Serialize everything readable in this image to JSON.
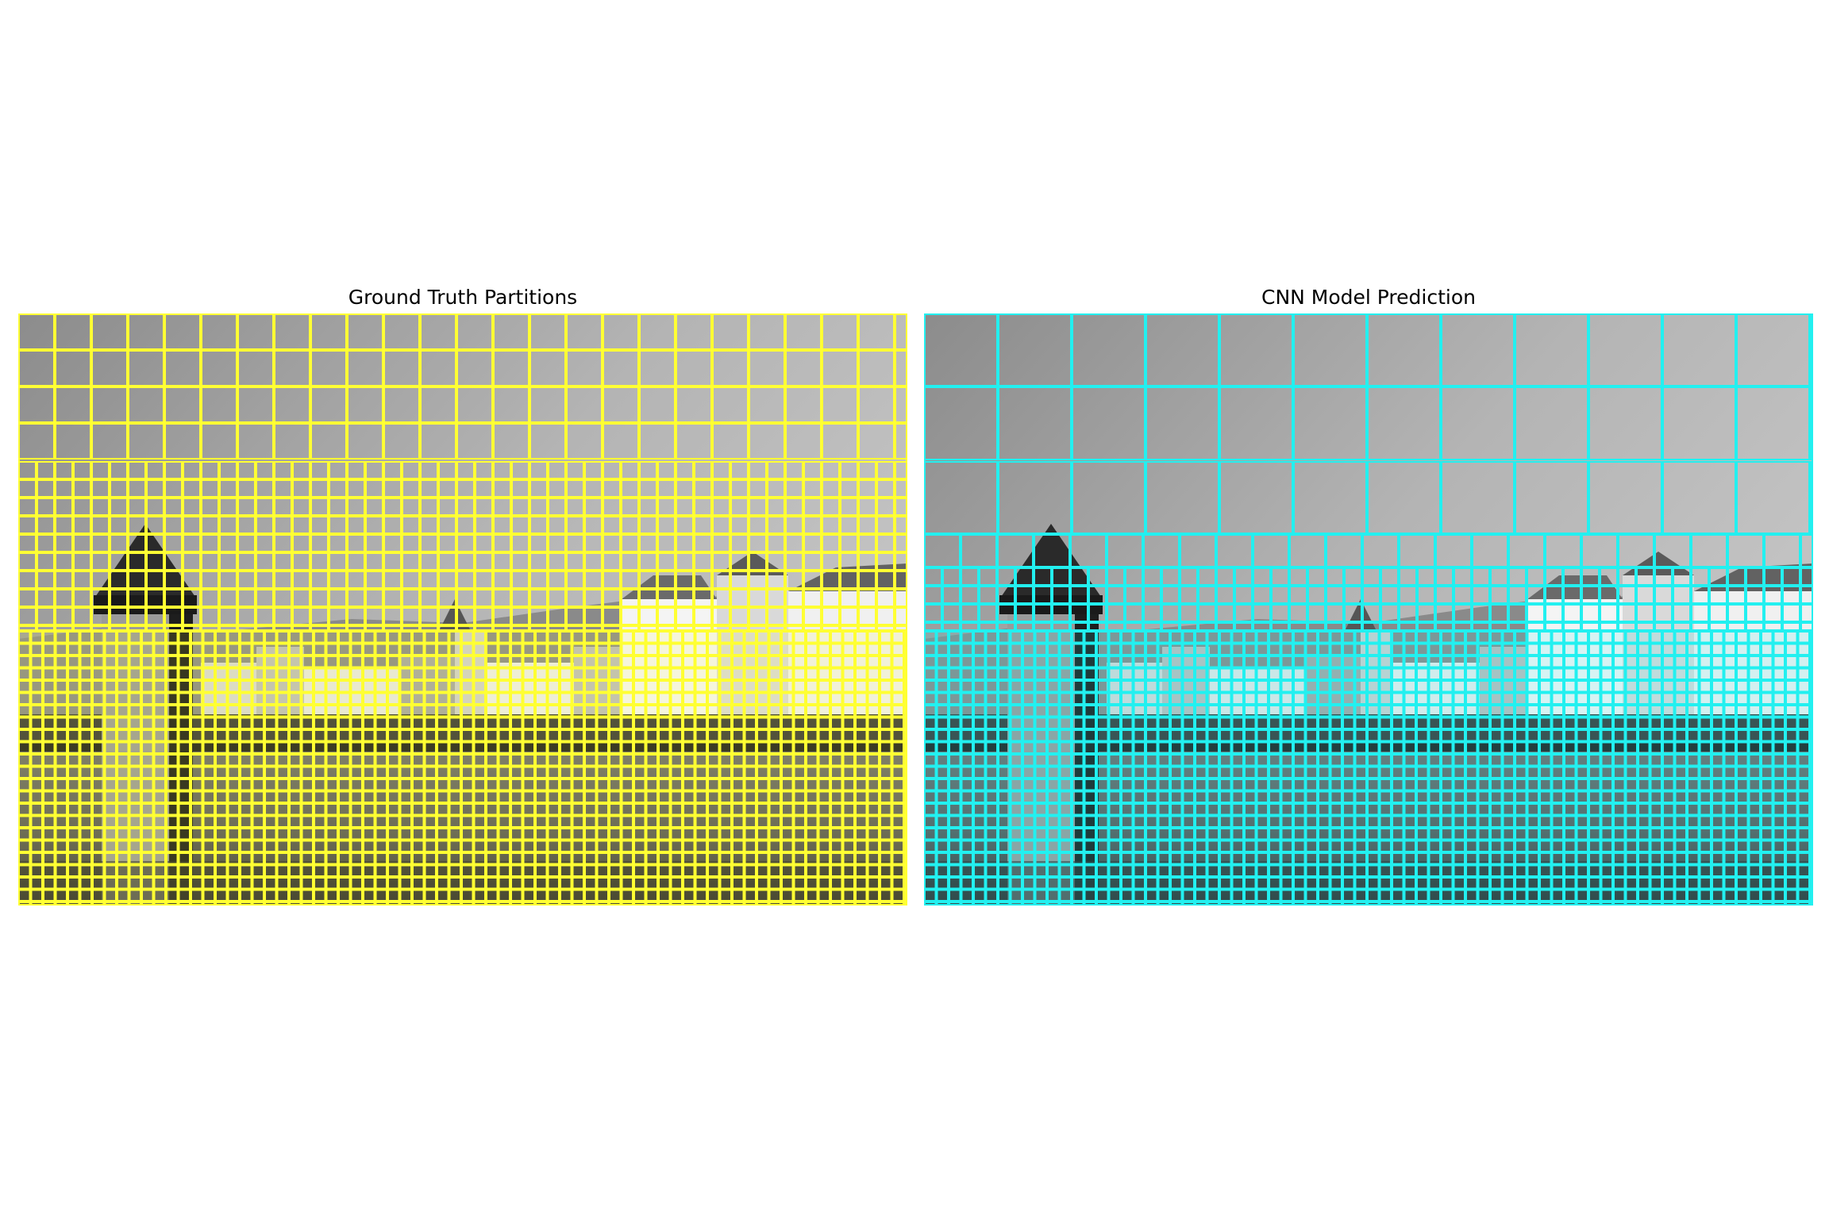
{
  "titles": {
    "left": "Ground Truth Partitions",
    "right": "CNN Model Prediction"
  },
  "colors": {
    "ground_truth_grid": "#ffff33",
    "prediction_grid": "#22f0f0"
  },
  "image_content": "grayscale photo of a lakeside town with a stone water tower and a wooden bridge; block-partition grid overlay"
}
